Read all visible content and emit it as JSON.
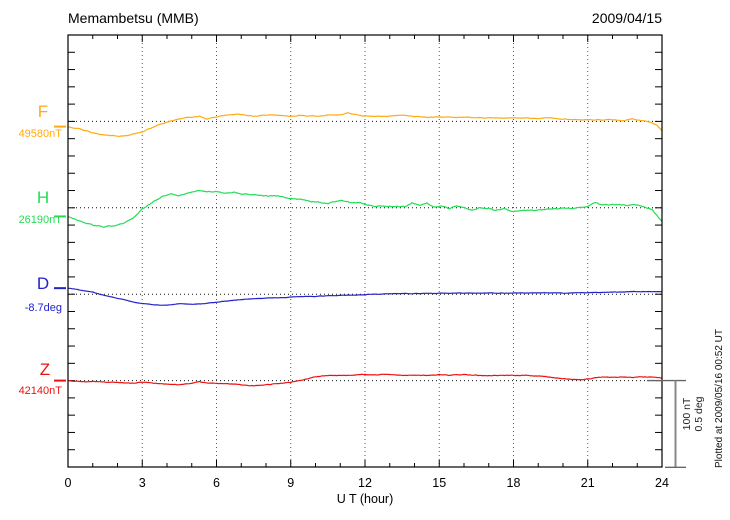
{
  "header": {
    "station_title": "Memambetsu (MMB)",
    "obs_date": "2009/04/15"
  },
  "xaxis": {
    "label": "U T (hour)",
    "tick_labels": [
      "0",
      "3",
      "6",
      "9",
      "12",
      "15",
      "18",
      "21",
      "24"
    ]
  },
  "scale_bar": {
    "label_nt": "100 nT",
    "label_deg": "0.5 deg"
  },
  "plotted_note": "Plotted at 2009/05/16 00:52 UT",
  "chart_data": {
    "type": "line",
    "title": "Memambetsu (MMB)",
    "date": "2009/04/15",
    "xlabel": "U T (hour)",
    "x_range_hours": [
      0,
      24
    ],
    "x_major_tick_hours": 3,
    "x_minor_tick_hours": 1,
    "grid": "vertical dotted lines every 3 h; dotted horizontal baseline per component",
    "legend_position": "left margin, one colored label per component",
    "scale_divisions": {
      "nT_per_division": 100,
      "deg_per_division": 0.5
    },
    "plotted_at": "Plotted at 2009/05/16 00:52 UT",
    "series": [
      {
        "component": "F",
        "base_label": "49580nT",
        "base_value": 49580,
        "unit": "nT",
        "color": "#ffaa11",
        "points_hour_offset": [
          [
            0,
            -6
          ],
          [
            0.5,
            -9
          ],
          [
            1,
            -13
          ],
          [
            1.5,
            -16
          ],
          [
            2,
            -17
          ],
          [
            2.5,
            -16
          ],
          [
            3,
            -12
          ],
          [
            3.5,
            -6
          ],
          [
            4,
            -1
          ],
          [
            4.5,
            3
          ],
          [
            5,
            5
          ],
          [
            5.3,
            6
          ],
          [
            5.6,
            3
          ],
          [
            6,
            5
          ],
          [
            6.5,
            8
          ],
          [
            7,
            8
          ],
          [
            7.5,
            6
          ],
          [
            8,
            7
          ],
          [
            8.5,
            7
          ],
          [
            9,
            6
          ],
          [
            9.5,
            7
          ],
          [
            10,
            6
          ],
          [
            10.5,
            7
          ],
          [
            11,
            7
          ],
          [
            11.3,
            10
          ],
          [
            11.7,
            7
          ],
          [
            12,
            6
          ],
          [
            12.5,
            6
          ],
          [
            13,
            6
          ],
          [
            13.5,
            7
          ],
          [
            14,
            6
          ],
          [
            14.5,
            5
          ],
          [
            15,
            5
          ],
          [
            15.5,
            5
          ],
          [
            16,
            5
          ],
          [
            16.5,
            4
          ],
          [
            17,
            4
          ],
          [
            17.5,
            4
          ],
          [
            18,
            4
          ],
          [
            18.5,
            4
          ],
          [
            19,
            3
          ],
          [
            19.3,
            5
          ],
          [
            19.7,
            3
          ],
          [
            20,
            3
          ],
          [
            20.5,
            2
          ],
          [
            21,
            2
          ],
          [
            21.5,
            2
          ],
          [
            22,
            2
          ],
          [
            22.5,
            1
          ],
          [
            22.8,
            3
          ],
          [
            23.2,
            1
          ],
          [
            23.5,
            -1
          ],
          [
            23.8,
            -5
          ],
          [
            24,
            -11
          ]
        ]
      },
      {
        "component": "H",
        "base_label": "26190nT",
        "base_value": 26190,
        "unit": "nT",
        "color": "#22dd55",
        "points_hour_offset": [
          [
            0,
            -10
          ],
          [
            0.5,
            -15
          ],
          [
            1,
            -20
          ],
          [
            1.4,
            -22
          ],
          [
            1.8,
            -21
          ],
          [
            2.2,
            -18
          ],
          [
            2.6,
            -12
          ],
          [
            3,
            -1
          ],
          [
            3.4,
            6
          ],
          [
            3.8,
            13
          ],
          [
            4.2,
            16
          ],
          [
            4.5,
            14
          ],
          [
            4.8,
            17
          ],
          [
            5.1,
            19
          ],
          [
            5.3,
            20
          ],
          [
            5.6,
            18
          ],
          [
            6,
            19
          ],
          [
            6.3,
            17
          ],
          [
            6.7,
            18
          ],
          [
            7,
            16
          ],
          [
            7.5,
            15
          ],
          [
            8,
            14
          ],
          [
            8.5,
            13
          ],
          [
            9,
            11
          ],
          [
            9.5,
            9
          ],
          [
            10,
            7
          ],
          [
            10.5,
            5
          ],
          [
            11,
            9
          ],
          [
            11.4,
            6
          ],
          [
            11.7,
            6
          ],
          [
            12,
            4
          ],
          [
            12.4,
            1
          ],
          [
            12.8,
            2
          ],
          [
            13.2,
            1
          ],
          [
            13.6,
            1
          ],
          [
            13.9,
            6
          ],
          [
            14.2,
            3
          ],
          [
            14.5,
            6
          ],
          [
            14.8,
            1
          ],
          [
            15.1,
            2
          ],
          [
            15.4,
            -1
          ],
          [
            15.7,
            2
          ],
          [
            16,
            0
          ],
          [
            16.3,
            -3
          ],
          [
            16.6,
            0
          ],
          [
            17,
            0
          ],
          [
            17.3,
            -3
          ],
          [
            17.6,
            -1
          ],
          [
            18,
            -4
          ],
          [
            18.4,
            -2
          ],
          [
            18.8,
            -3
          ],
          [
            19.2,
            -2
          ],
          [
            19.6,
            -2
          ],
          [
            20,
            -1
          ],
          [
            20.5,
            -1
          ],
          [
            21,
            1
          ],
          [
            21.3,
            6
          ],
          [
            21.6,
            3
          ],
          [
            22,
            4
          ],
          [
            22.5,
            3
          ],
          [
            23,
            3
          ],
          [
            23.3,
            1
          ],
          [
            23.6,
            -2
          ],
          [
            24,
            -16
          ]
        ]
      },
      {
        "component": "D",
        "base_label": "-8.7deg",
        "base_value": -8.7,
        "unit": "deg",
        "color": "#2222cc",
        "points_hour_offset": [
          [
            0,
            0.035
          ],
          [
            0.5,
            0.023
          ],
          [
            1,
            0.012
          ],
          [
            1.5,
            -0.009
          ],
          [
            2,
            -0.023
          ],
          [
            2.5,
            -0.041
          ],
          [
            3,
            -0.055
          ],
          [
            3.5,
            -0.061
          ],
          [
            4,
            -0.064
          ],
          [
            4.5,
            -0.055
          ],
          [
            5,
            -0.058
          ],
          [
            5.5,
            -0.055
          ],
          [
            6,
            -0.046
          ],
          [
            6.5,
            -0.038
          ],
          [
            7,
            -0.032
          ],
          [
            7.5,
            -0.026
          ],
          [
            8,
            -0.023
          ],
          [
            8.5,
            -0.02
          ],
          [
            9,
            -0.017
          ],
          [
            9.5,
            -0.014
          ],
          [
            10,
            -0.012
          ],
          [
            10.5,
            -0.009
          ],
          [
            11,
            -0.006
          ],
          [
            11.5,
            -0.006
          ],
          [
            12,
            -0.003
          ],
          [
            13,
            0.003
          ],
          [
            14,
            0.003
          ],
          [
            15,
            0.006
          ],
          [
            16,
            0.006
          ],
          [
            17,
            0.006
          ],
          [
            18,
            0.006
          ],
          [
            19,
            0.009
          ],
          [
            20,
            0.006
          ],
          [
            21,
            0.009
          ],
          [
            22,
            0.012
          ],
          [
            23,
            0.015
          ],
          [
            24,
            0.015
          ]
        ]
      },
      {
        "component": "Z",
        "base_label": "42140nT",
        "base_value": 42140,
        "unit": "nT",
        "color": "#ee1111",
        "points_hour_offset": [
          [
            0,
            0
          ],
          [
            0.5,
            -1
          ],
          [
            1,
            -1
          ],
          [
            1.5,
            -2
          ],
          [
            2,
            -2
          ],
          [
            2.5,
            -3
          ],
          [
            3,
            -2
          ],
          [
            3.5,
            -3
          ],
          [
            4,
            -4
          ],
          [
            4.5,
            -5
          ],
          [
            5,
            -3
          ],
          [
            5.3,
            -1
          ],
          [
            5.6,
            -3
          ],
          [
            6,
            -3
          ],
          [
            6.5,
            -4
          ],
          [
            7,
            -5
          ],
          [
            7.5,
            -6
          ],
          [
            8,
            -5
          ],
          [
            8.5,
            -3
          ],
          [
            9,
            -2
          ],
          [
            9.5,
            1
          ],
          [
            10,
            4
          ],
          [
            10.5,
            6
          ],
          [
            11,
            6
          ],
          [
            11.5,
            6
          ],
          [
            12,
            7
          ],
          [
            12.5,
            7
          ],
          [
            13,
            7
          ],
          [
            13.5,
            6
          ],
          [
            14,
            6
          ],
          [
            14.5,
            6
          ],
          [
            15,
            7
          ],
          [
            15.5,
            6
          ],
          [
            16,
            7
          ],
          [
            16.5,
            6
          ],
          [
            17,
            6
          ],
          [
            17.5,
            6
          ],
          [
            18,
            6
          ],
          [
            18.5,
            6
          ],
          [
            19,
            5
          ],
          [
            19.5,
            4
          ],
          [
            20,
            2
          ],
          [
            20.5,
            1
          ],
          [
            20.8,
            1
          ],
          [
            21.2,
            3
          ],
          [
            21.5,
            4
          ],
          [
            22,
            4
          ],
          [
            22.5,
            4
          ],
          [
            23,
            4
          ],
          [
            23.5,
            4
          ],
          [
            24,
            3
          ]
        ]
      }
    ]
  }
}
